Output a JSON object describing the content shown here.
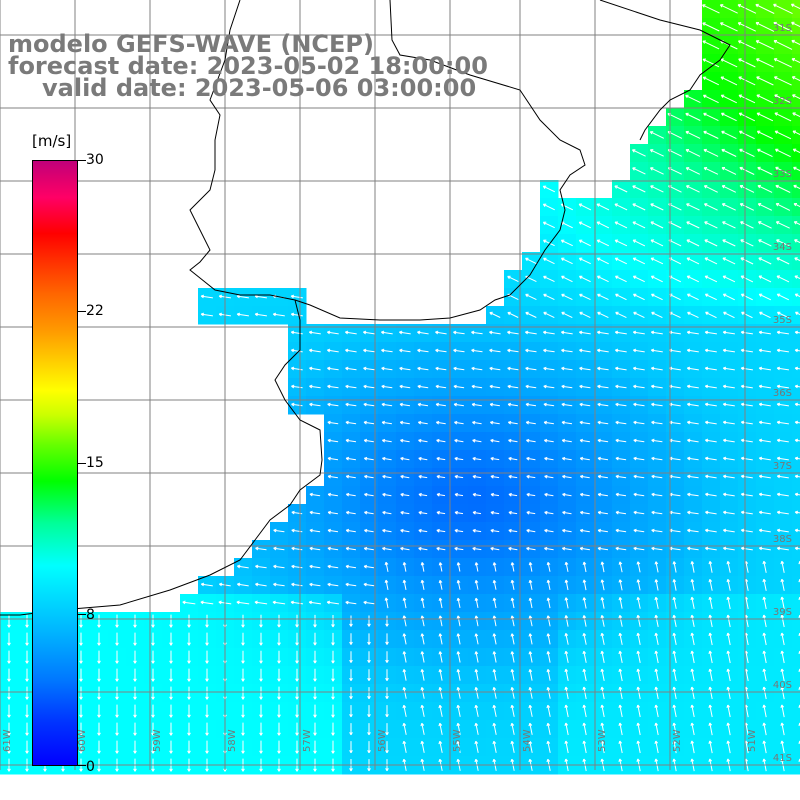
{
  "title": {
    "model": "modelo GEFS-WAVE (NCEP)",
    "forecast": "forecast date: 2023-05-02 18:00:00",
    "valid": "valid date: 2023-05-06 03:00:00"
  },
  "legend": {
    "unit": "[m/s]",
    "ticks": [
      "30",
      "22",
      "15",
      "8",
      "0"
    ],
    "tick_values": [
      30,
      22,
      15,
      8,
      0
    ],
    "range": [
      0,
      30
    ]
  },
  "lat_labels": [
    "31S",
    "32S",
    "33S",
    "34S",
    "35S",
    "36S",
    "37S",
    "38S",
    "39S",
    "40S",
    "41S"
  ],
  "lon_labels": [
    "61W",
    "60W",
    "59W",
    "58W",
    "57W",
    "56W",
    "55W",
    "54W",
    "53W",
    "52W",
    "51W"
  ],
  "colors": {
    "background": "#ffffff",
    "land": "#ffffff",
    "grid": "#808080",
    "coast": "#000000",
    "title": "#7a7a7a",
    "arrows": "#ffffff"
  }
}
